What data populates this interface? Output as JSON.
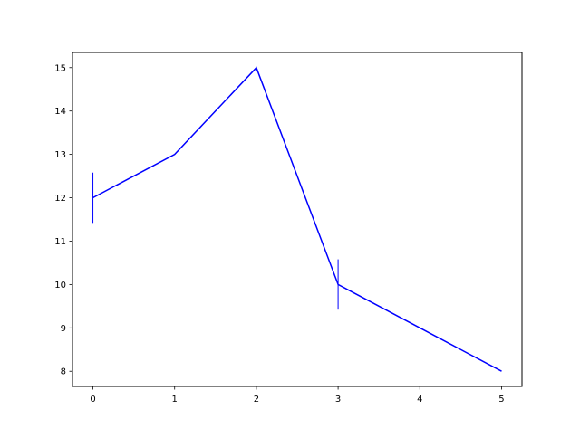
{
  "chart_data": {
    "type": "line",
    "title": "",
    "xlabel": "",
    "ylabel": "",
    "x": [
      0,
      1,
      2,
      3,
      4,
      5
    ],
    "series": [
      {
        "values": [
          12,
          13,
          15,
          10,
          9,
          8
        ],
        "color": "#0000ff",
        "errorbars": [
          {
            "x": 0,
            "y": 12,
            "err": 0.58
          },
          {
            "x": 3,
            "y": 10,
            "err": 0.58
          }
        ]
      }
    ],
    "xlim": [
      -0.25,
      5.25
    ],
    "ylim": [
      7.65,
      15.35
    ],
    "xticks": [
      "0",
      "1",
      "2",
      "3",
      "4",
      "5"
    ],
    "yticks": [
      "8",
      "9",
      "10",
      "11",
      "12",
      "13",
      "14",
      "15"
    ],
    "grid": false
  }
}
